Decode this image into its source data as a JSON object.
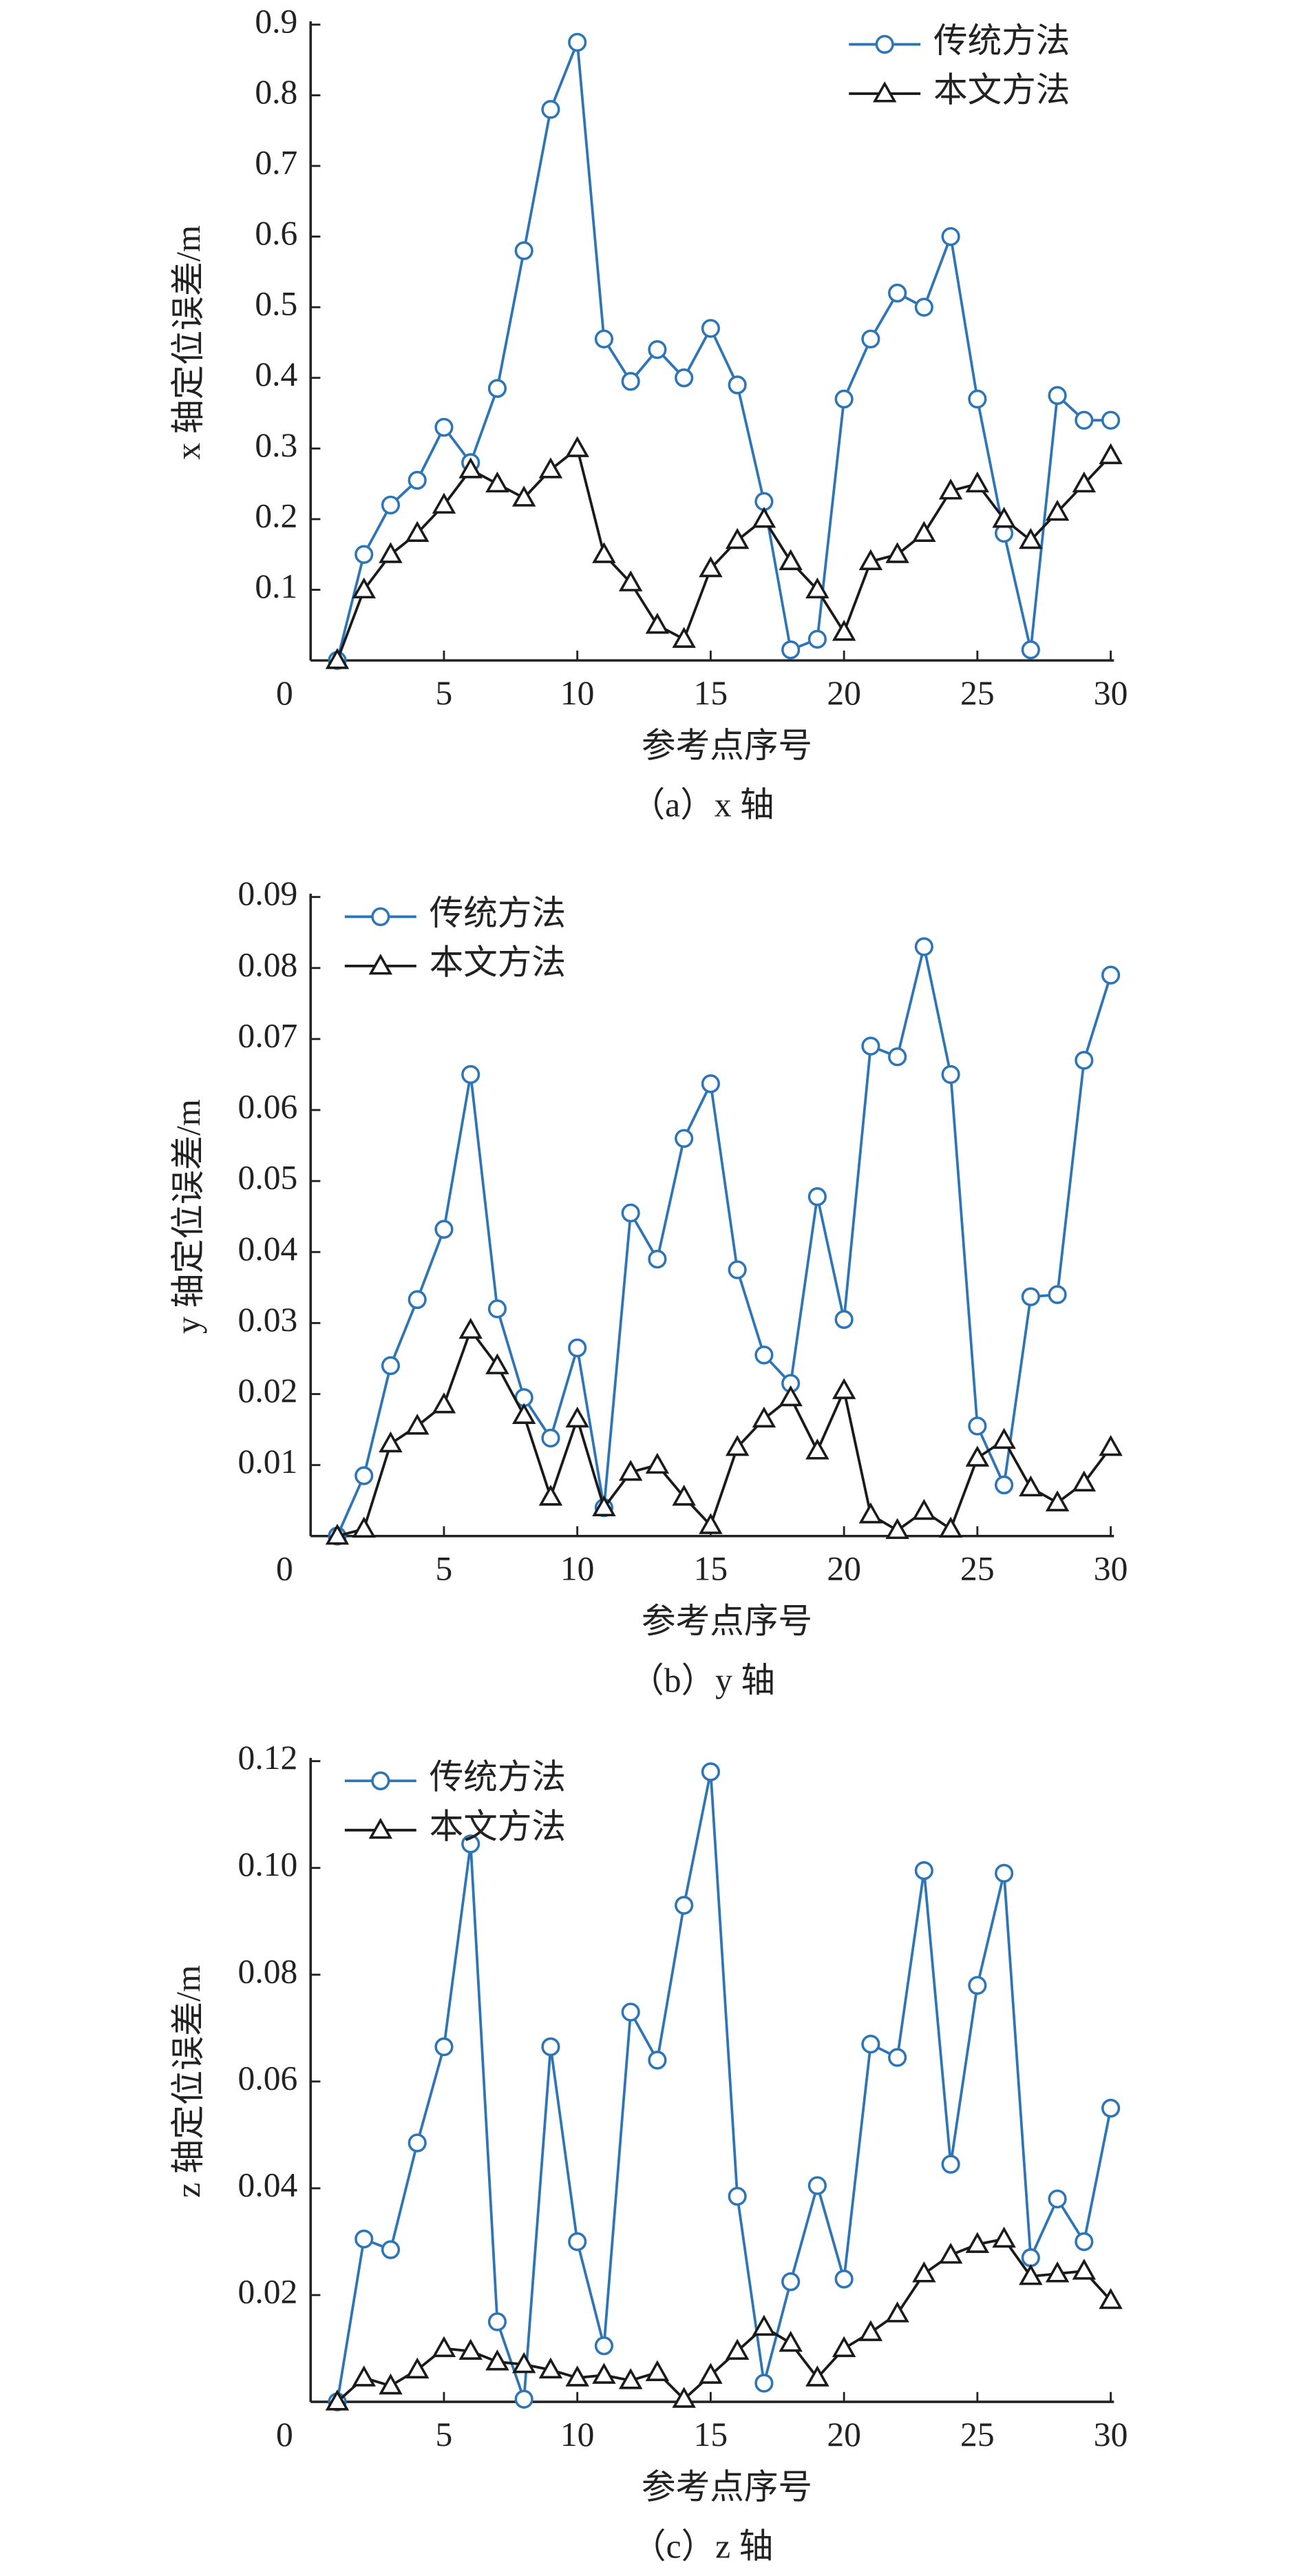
{
  "chart_data": [
    {
      "type": "line",
      "caption": "（a）x 轴",
      "xlabel": "参考点序号",
      "ylabel": "x 轴定位误差/m",
      "legend": "top-right",
      "x": [
        1,
        2,
        3,
        4,
        5,
        6,
        7,
        8,
        9,
        10,
        11,
        12,
        13,
        14,
        15,
        16,
        17,
        18,
        19,
        20,
        21,
        22,
        23,
        24,
        25,
        26,
        27,
        28,
        29,
        30
      ],
      "xlim": [
        0,
        30
      ],
      "xticks": [
        0,
        5,
        10,
        15,
        20,
        25,
        30
      ],
      "ylim": [
        0,
        0.9
      ],
      "yticks": [
        0.1,
        0.2,
        0.3,
        0.4,
        0.5,
        0.6,
        0.7,
        0.8,
        0.9
      ],
      "series": [
        {
          "name": "传统方法",
          "color": "#2e75b6",
          "marker": "circle",
          "values": [
            0,
            0.15,
            0.22,
            0.255,
            0.33,
            0.28,
            0.385,
            0.58,
            0.78,
            0.875,
            0.455,
            0.395,
            0.44,
            0.4,
            0.47,
            0.39,
            0.225,
            0.015,
            0.03,
            0.37,
            0.455,
            0.52,
            0.5,
            0.6,
            0.37,
            0.18,
            0.015,
            0.375,
            0.34,
            0.34
          ]
        },
        {
          "name": "本文方法",
          "color": "#1a1a1a",
          "marker": "triangle",
          "values": [
            0,
            0.1,
            0.15,
            0.18,
            0.22,
            0.27,
            0.25,
            0.23,
            0.27,
            0.3,
            0.15,
            0.11,
            0.05,
            0.03,
            0.13,
            0.17,
            0.2,
            0.14,
            0.1,
            0.04,
            0.14,
            0.15,
            0.18,
            0.24,
            0.25,
            0.2,
            0.17,
            0.21,
            0.25,
            0.29
          ]
        }
      ]
    },
    {
      "type": "line",
      "caption": "（b）y 轴",
      "xlabel": "参考点序号",
      "ylabel": "y 轴定位误差/m",
      "legend": "top-left",
      "x": [
        1,
        2,
        3,
        4,
        5,
        6,
        7,
        8,
        9,
        10,
        11,
        12,
        13,
        14,
        15,
        16,
        17,
        18,
        19,
        20,
        21,
        22,
        23,
        24,
        25,
        26,
        27,
        28,
        29,
        30
      ],
      "xlim": [
        0,
        30
      ],
      "xticks": [
        0,
        5,
        10,
        15,
        20,
        25,
        30
      ],
      "ylim": [
        0,
        0.09
      ],
      "yticks": [
        0.01,
        0.02,
        0.03,
        0.04,
        0.05,
        0.06,
        0.07,
        0.08,
        0.09
      ],
      "series": [
        {
          "name": "传统方法",
          "color": "#2e75b6",
          "marker": "circle",
          "values": [
            0,
            0.0085,
            0.024,
            0.0333,
            0.0432,
            0.065,
            0.032,
            0.0195,
            0.0138,
            0.0265,
            0.004,
            0.0455,
            0.039,
            0.056,
            0.0637,
            0.0375,
            0.0255,
            0.0215,
            0.0478,
            0.0305,
            0.069,
            0.0675,
            0.083,
            0.065,
            0.0155,
            0.0072,
            0.0337,
            0.034,
            0.067,
            0.079
          ]
        },
        {
          "name": "本文方法",
          "color": "#1a1a1a",
          "marker": "triangle",
          "values": [
            0,
            0.001,
            0.013,
            0.0155,
            0.0185,
            0.029,
            0.024,
            0.017,
            0.0055,
            0.0165,
            0.004,
            0.009,
            0.01,
            0.0055,
            0.0015,
            0.0125,
            0.0165,
            0.0195,
            0.012,
            0.0205,
            0.003,
            0.0008,
            0.0035,
            0.001,
            0.011,
            0.0135,
            0.0068,
            0.0047,
            0.0075,
            0.0125
          ]
        }
      ]
    },
    {
      "type": "line",
      "caption": "（c）z 轴",
      "xlabel": "参考点序号",
      "ylabel": "z 轴定位误差/m",
      "legend": "top-left",
      "x": [
        1,
        2,
        3,
        4,
        5,
        6,
        7,
        8,
        9,
        10,
        11,
        12,
        13,
        14,
        15,
        16,
        17,
        18,
        19,
        20,
        21,
        22,
        23,
        24,
        25,
        26,
        27,
        28,
        29,
        30
      ],
      "xlim": [
        0,
        30
      ],
      "xticks": [
        0,
        5,
        10,
        15,
        20,
        25,
        30
      ],
      "ylim": [
        0,
        0.12
      ],
      "yticks": [
        0.02,
        0.04,
        0.06,
        0.08,
        {
          "value": 0.1,
          "label": "0.10"
        },
        0.12
      ],
      "series": [
        {
          "name": "传统方法",
          "color": "#2e75b6",
          "marker": "circle",
          "values": [
            0,
            0.0305,
            0.0285,
            0.0485,
            0.0665,
            0.1045,
            0.015,
            0.0005,
            0.0665,
            0.03,
            0.0105,
            0.073,
            0.064,
            0.093,
            0.118,
            0.0385,
            0.0035,
            0.0225,
            0.0405,
            0.023,
            0.067,
            0.0645,
            0.0995,
            0.0445,
            0.078,
            0.099,
            0.027,
            0.038,
            0.03,
            0.055
          ]
        },
        {
          "name": "本文方法",
          "color": "#1a1a1a",
          "marker": "triangle",
          "values": [
            0,
            0.0045,
            0.003,
            0.006,
            0.01,
            0.0095,
            0.0075,
            0.007,
            0.006,
            0.0045,
            0.005,
            0.004,
            0.0055,
            0.0005,
            0.005,
            0.0095,
            0.014,
            0.011,
            0.0045,
            0.01,
            0.013,
            0.0165,
            0.024,
            0.0275,
            0.0295,
            0.0305,
            0.0235,
            0.024,
            0.0245,
            0.019
          ]
        }
      ]
    }
  ]
}
